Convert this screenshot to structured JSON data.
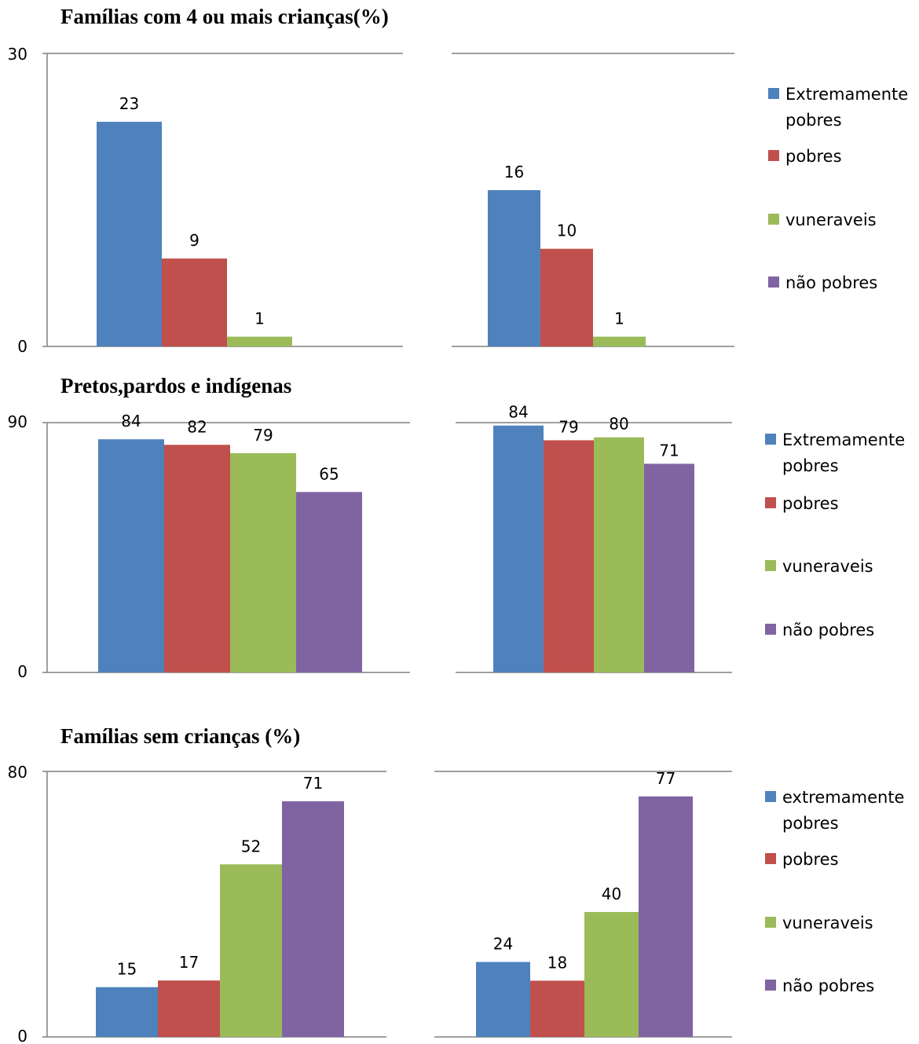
{
  "colors": {
    "extremamente_pobres": "#4F81BD",
    "pobres": "#C0504D",
    "vuneraveis": "#9BBB59",
    "nao_pobres": "#8064A2",
    "axis": "#808080"
  },
  "chart_data": [
    {
      "section": "fam4",
      "panel": "left",
      "type": "bar",
      "title": "Famílias com 4 ou mais crianças(%)",
      "categories": [
        "Extremamente pobres",
        "pobres",
        "vuneraveis",
        "não pobres"
      ],
      "values": [
        23,
        9,
        1,
        null
      ],
      "data_labels": [
        "23",
        "9",
        "1",
        ""
      ],
      "ylim": [
        0,
        30
      ],
      "yticks": [
        "0",
        "30"
      ],
      "grid": false,
      "legend": "none"
    },
    {
      "section": "fam4",
      "panel": "right",
      "type": "bar",
      "title": "",
      "categories": [
        "Extremamente pobres",
        "pobres",
        "vuneraveis",
        "não pobres"
      ],
      "values": [
        16,
        10,
        1,
        null
      ],
      "data_labels": [
        "16",
        "10",
        "1",
        ""
      ],
      "ylim": [
        0,
        30
      ],
      "grid": false,
      "legend": "right",
      "legend_entries": [
        "Extremamente pobres",
        "pobres",
        "vuneraveis",
        "não pobres"
      ]
    },
    {
      "section": "pretos",
      "panel": "left",
      "type": "bar",
      "title": "Pretos,pardos e indígenas",
      "categories": [
        "Extremamente pobres",
        "pobres",
        "vuneraveis",
        "não pobres"
      ],
      "values": [
        84,
        82,
        79,
        65
      ],
      "data_labels": [
        "84",
        "82",
        "79",
        "65"
      ],
      "ylim": [
        0,
        90
      ],
      "yticks": [
        "0",
        "90"
      ],
      "grid": false,
      "legend": "none"
    },
    {
      "section": "pretos",
      "panel": "right",
      "type": "bar",
      "title": "",
      "categories": [
        "Extremamente pobres",
        "pobres",
        "vuneraveis",
        "não pobres"
      ],
      "values": [
        84,
        79,
        80,
        71
      ],
      "data_labels": [
        "84",
        "79",
        "80",
        "71"
      ],
      "ylim": [
        0,
        85
      ],
      "grid": false,
      "legend": "right",
      "legend_entries": [
        "Extremamente pobres",
        "pobres",
        "vuneraveis",
        "não pobres"
      ]
    },
    {
      "section": "semcri",
      "panel": "left",
      "type": "bar",
      "title": "Famílias sem crianças (%)",
      "categories": [
        "extremamente pobres",
        "pobres",
        "vuneraveis",
        "não pobres"
      ],
      "values": [
        15,
        17,
        52,
        71
      ],
      "data_labels": [
        "15",
        "17",
        "52",
        "71"
      ],
      "ylim": [
        0,
        80
      ],
      "yticks": [
        "0",
        "80"
      ],
      "grid": false,
      "legend": "none"
    },
    {
      "section": "semcri",
      "panel": "right",
      "type": "bar",
      "title": "",
      "categories": [
        "extremamente pobres",
        "pobres",
        "vuneraveis",
        "não pobres"
      ],
      "values": [
        24,
        18,
        40,
        77
      ],
      "data_labels": [
        "24",
        "18",
        "40",
        "77"
      ],
      "ylim": [
        0,
        85
      ],
      "grid": false,
      "legend": "right",
      "legend_entries": [
        "extremamente pobres",
        "pobres",
        "vuneraveis",
        "não pobres"
      ]
    }
  ]
}
